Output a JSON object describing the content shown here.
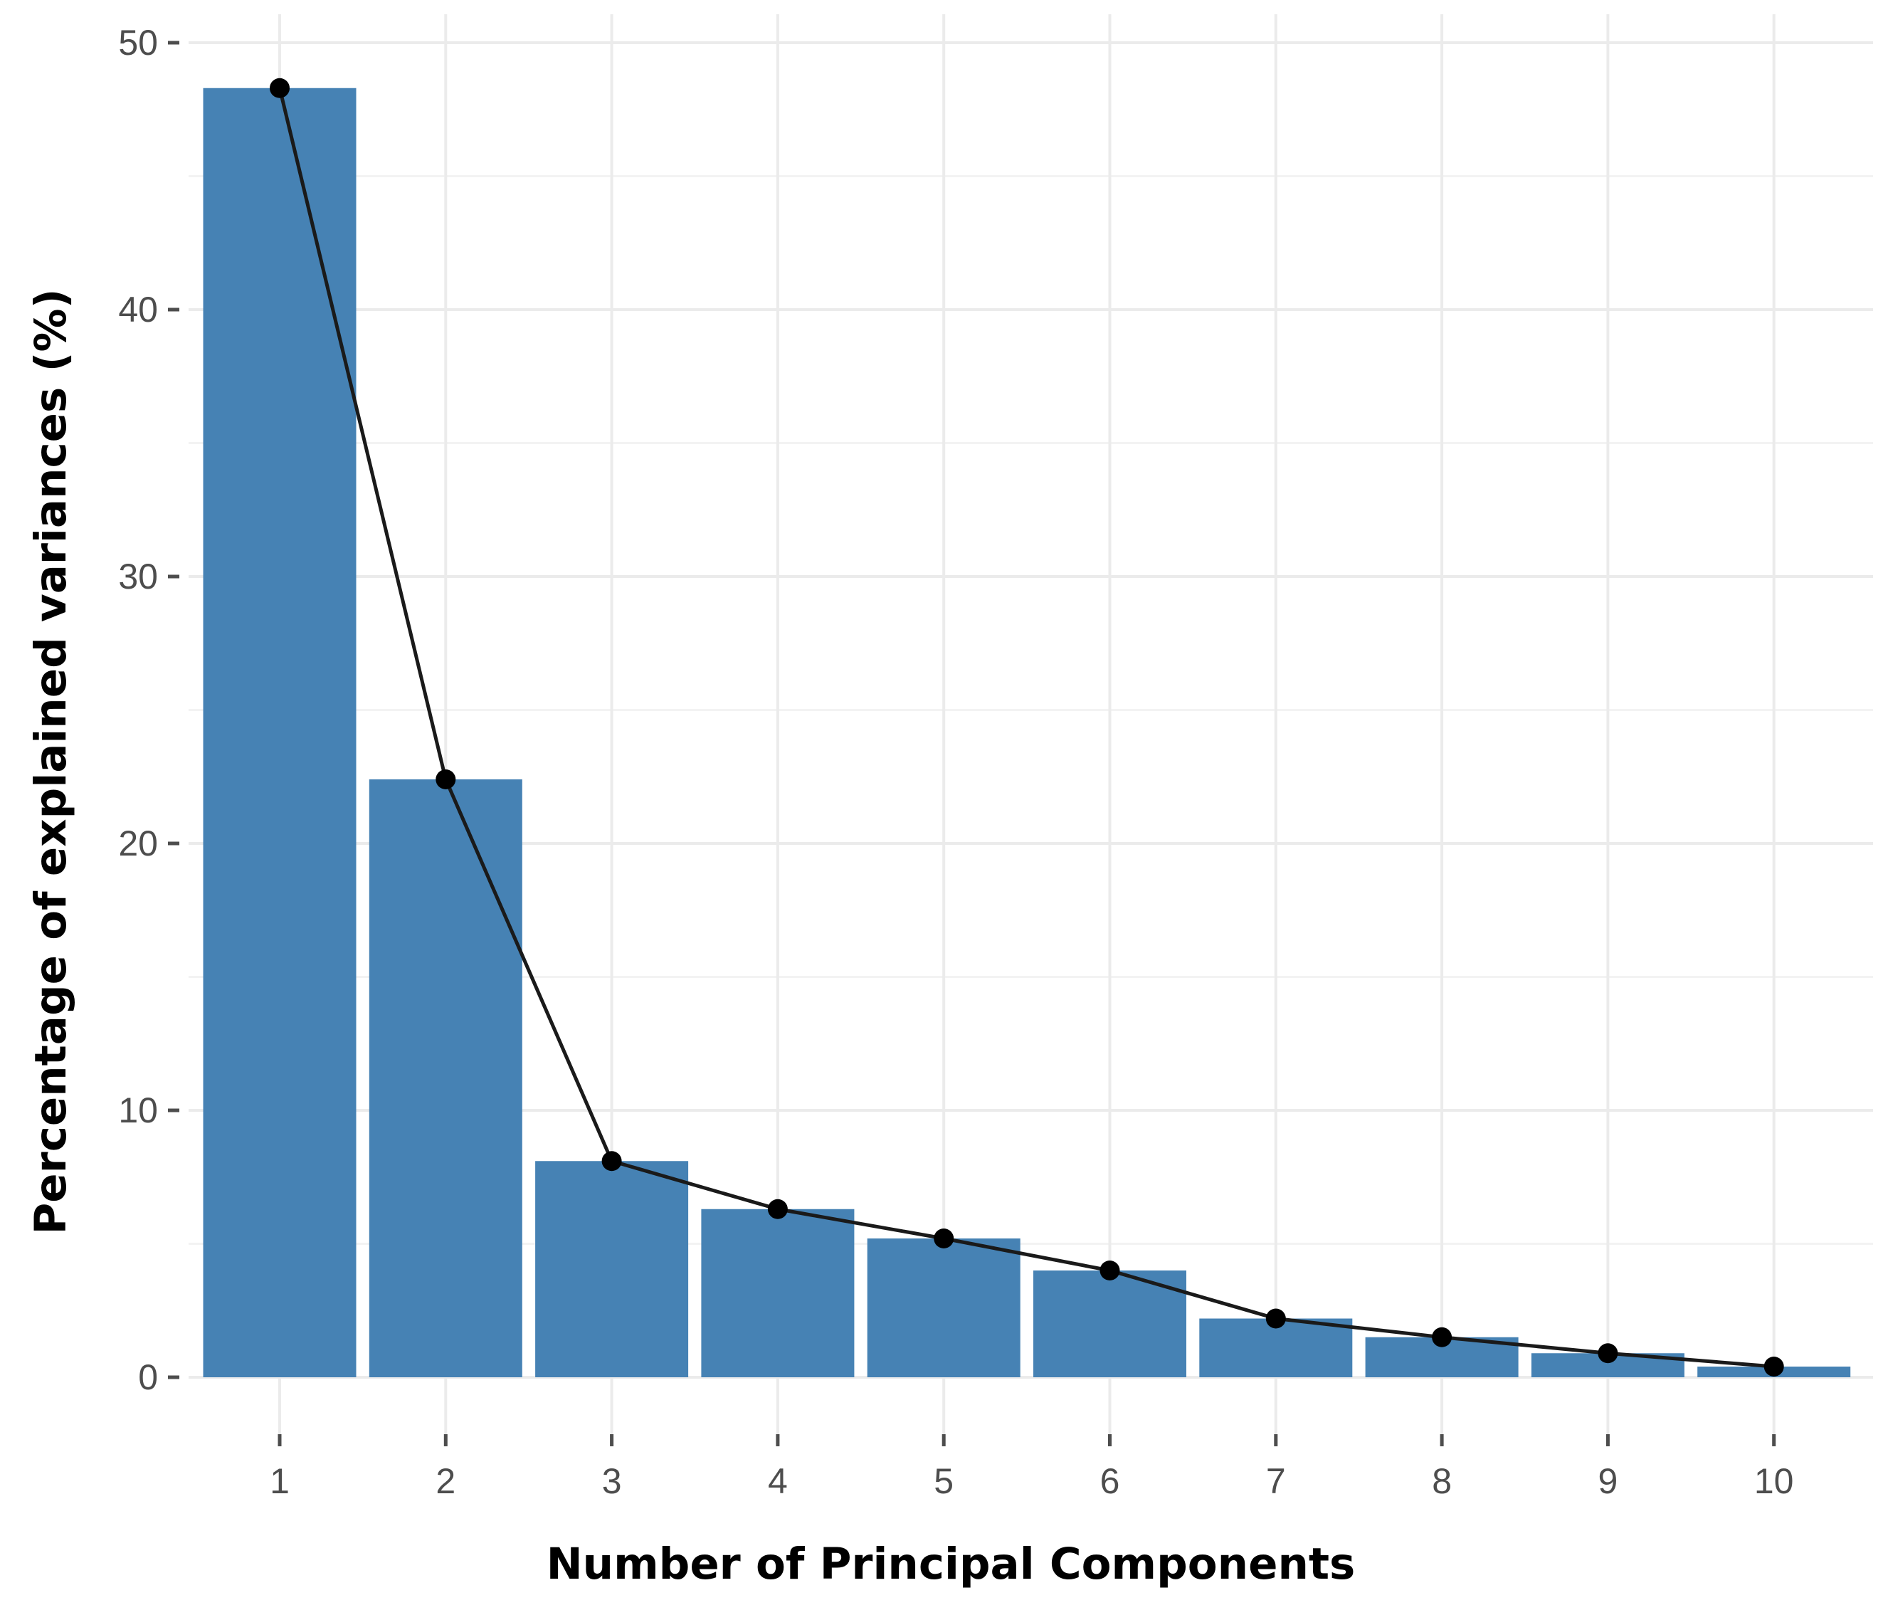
{
  "chart_data": {
    "type": "bar",
    "categories": [
      "1",
      "2",
      "3",
      "4",
      "5",
      "6",
      "7",
      "8",
      "9",
      "10"
    ],
    "values": [
      48.3,
      22.4,
      8.1,
      6.3,
      5.2,
      4.0,
      2.2,
      1.5,
      0.9,
      0.4
    ],
    "line_values": [
      48.3,
      22.4,
      8.1,
      6.3,
      5.2,
      4.0,
      2.2,
      1.5,
      0.9,
      0.4
    ],
    "xlabel": "Number of Principal Components",
    "ylabel": "Percentage of explained variances (%)",
    "ylim": [
      0,
      50
    ],
    "yticks": [
      "0",
      "10",
      "20",
      "30",
      "40",
      "50"
    ],
    "grid": true,
    "legend": "none",
    "bar_color": "#4682b4",
    "line_color": "#1a1a1a",
    "point_color": "#000000"
  }
}
